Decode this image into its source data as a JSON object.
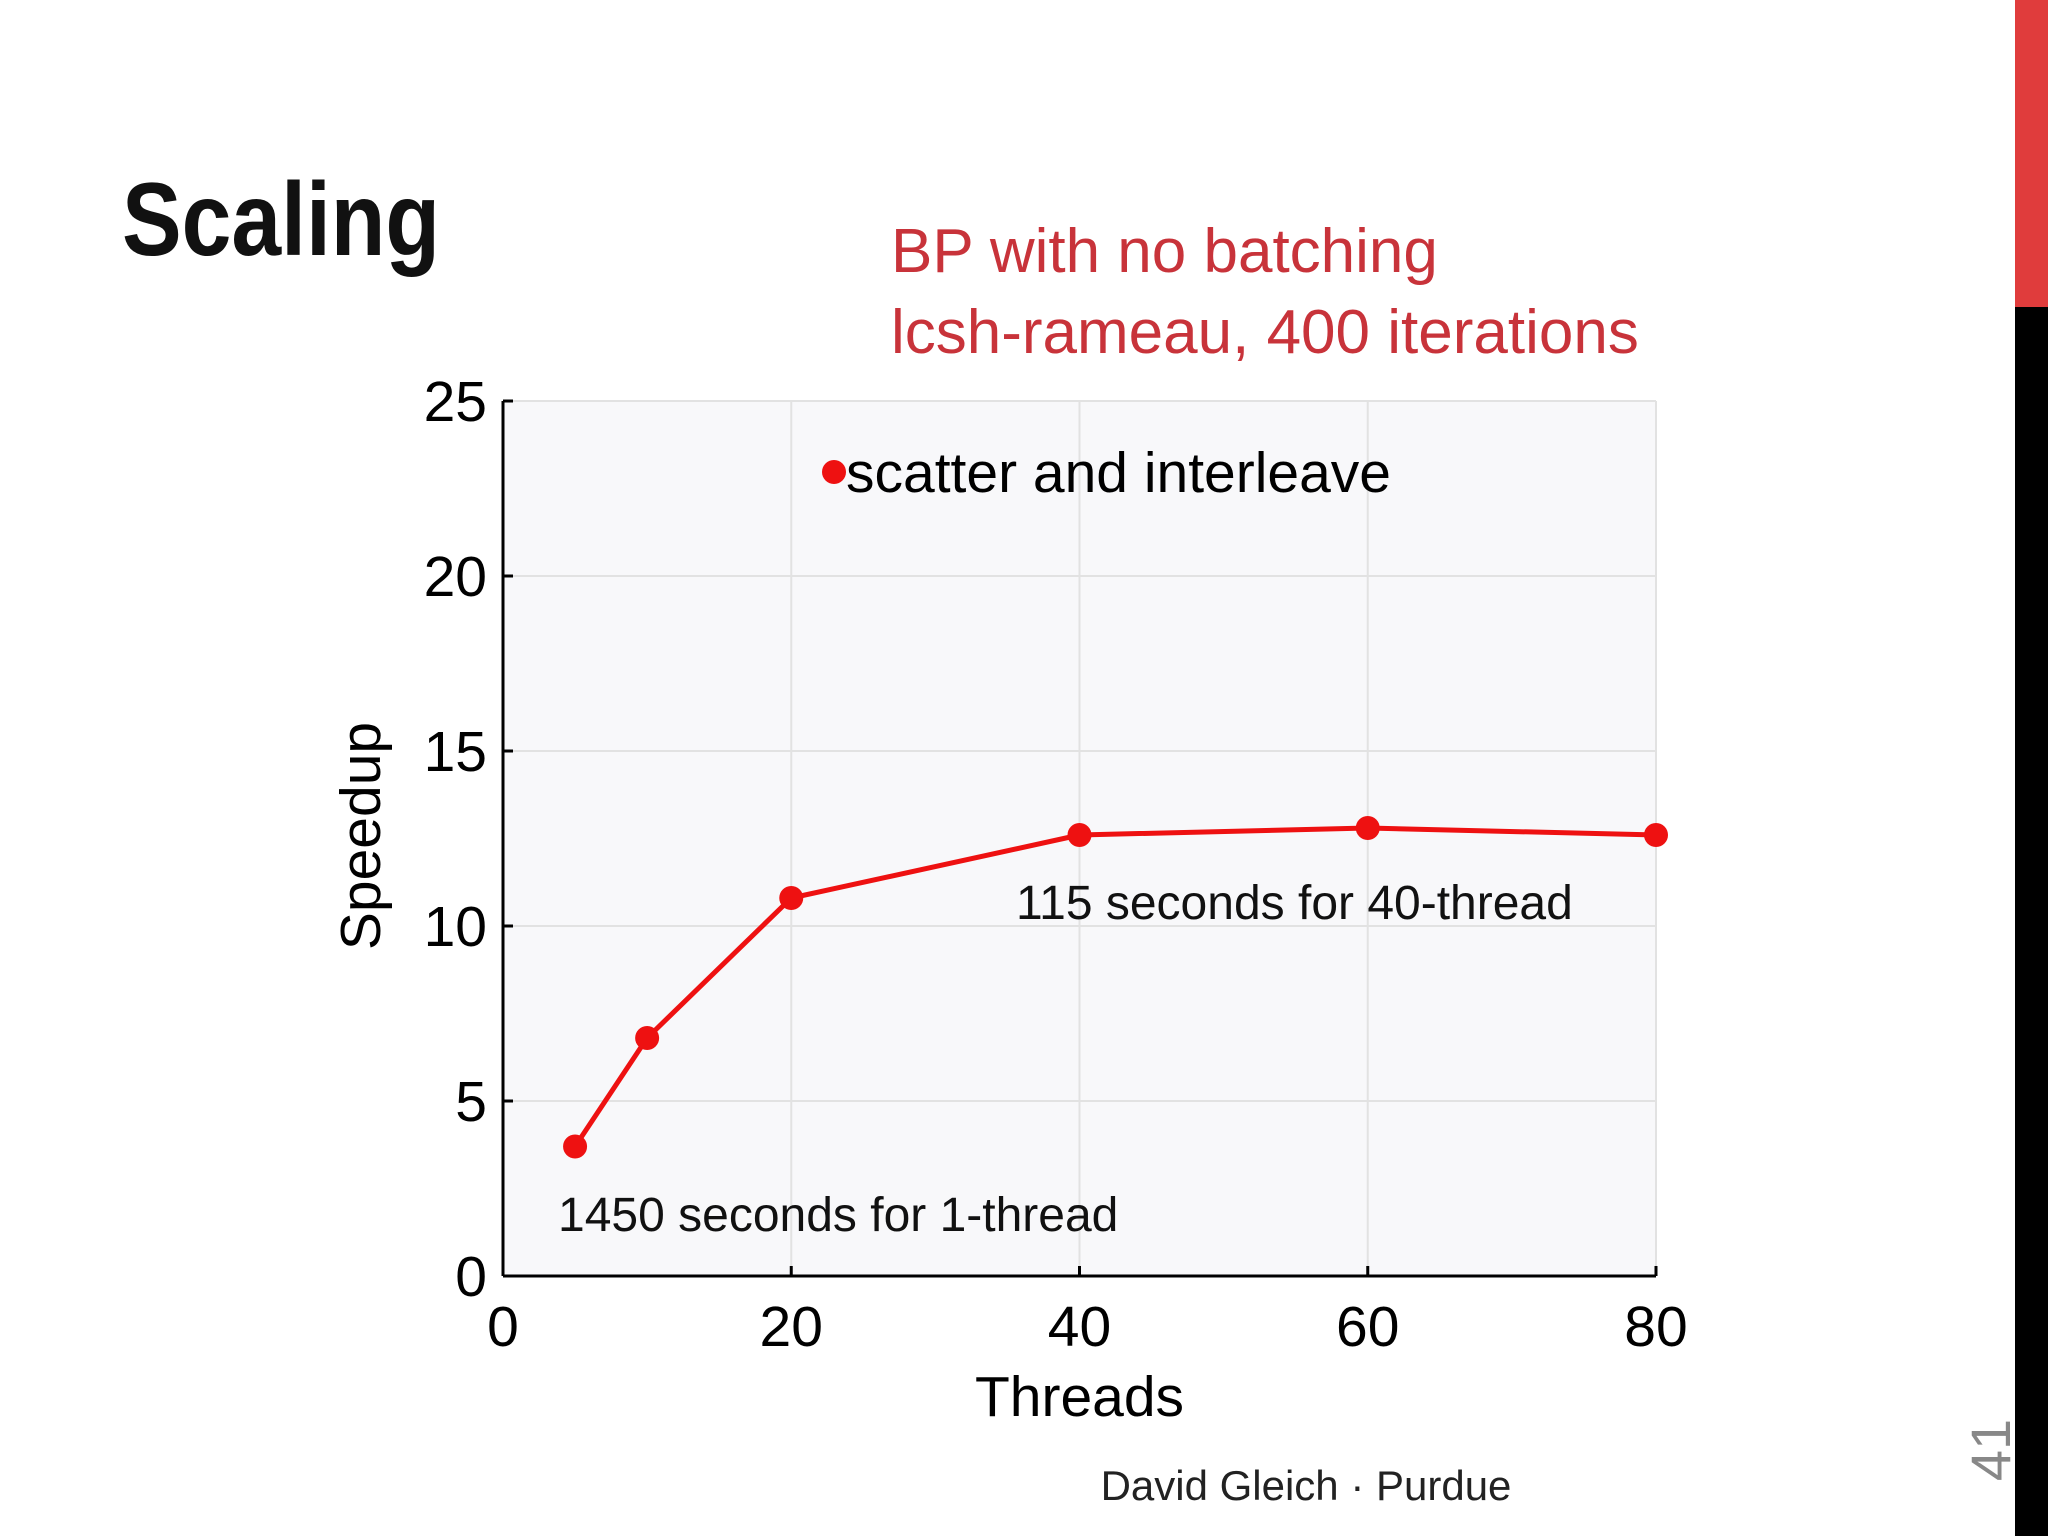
{
  "slide": {
    "title": "Scaling",
    "footer": "David Gleich · Purdue",
    "page_number": "41"
  },
  "chart_data": {
    "type": "line",
    "title": "BP with no batching",
    "subtitle": "lcsh-rameau, 400 iterations",
    "xlabel": "Threads",
    "ylabel": "Speedup",
    "x": [
      5,
      10,
      20,
      40,
      60,
      80
    ],
    "series": [
      {
        "name": "scatter and interleave",
        "color": "#ee1111",
        "values": [
          3.7,
          6.8,
          10.8,
          12.6,
          12.8,
          12.6
        ]
      }
    ],
    "xlim": [
      0,
      80
    ],
    "xticks": [
      0,
      20,
      40,
      60,
      80
    ],
    "ylim": [
      0,
      25
    ],
    "yticks": [
      0,
      5,
      10,
      15,
      20,
      25
    ],
    "grid": true,
    "annotations": [
      "115 seconds for 40-thread",
      "1450 seconds for 1-thread"
    ]
  }
}
